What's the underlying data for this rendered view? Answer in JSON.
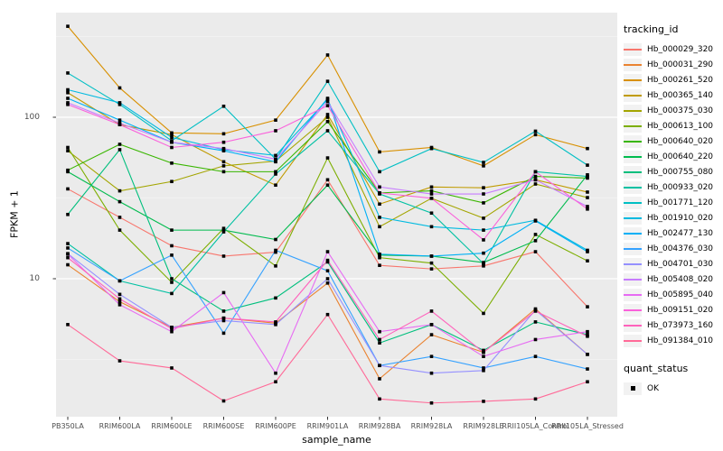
{
  "chart_data": {
    "type": "line",
    "title": "",
    "xlabel": "sample_name",
    "ylabel": "FPKM + 1",
    "y_scale": "log10",
    "y_ticks": [
      {
        "label": "100",
        "value": 100
      },
      {
        "label": "10",
        "value": 10
      }
    ],
    "y_minor_gridlines": [
      3.1623,
      31.623,
      316.23
    ],
    "ylim": [
      1.4,
      450
    ],
    "grid": true,
    "panel_background": "#EBEBEB",
    "gridline_color": "#FFFFFF",
    "point_shape": "small-black-square",
    "legend_position": "right",
    "legend_title": "tracking_id",
    "secondary_legend": {
      "title": "quant_status",
      "items": [
        {
          "label": "OK",
          "marker": "black-square"
        }
      ]
    },
    "categories": [
      "PB350LA",
      "RRIM600LA",
      "RRIM600LE",
      "RRIM600SE",
      "RRIM600PE",
      "RRIM901LA",
      "RRIM928BA",
      "RRIM928LA",
      "RRIM928LE",
      "RRII105LA_Control",
      "RRII105LA_Stressed"
    ],
    "series": [
      {
        "name": "Hb_000029_320",
        "color": "#F8766D",
        "values": [
          36,
          24,
          16,
          13.8,
          14.6,
          41,
          12.1,
          11.5,
          12,
          14.7,
          6.7
        ]
      },
      {
        "name": "Hb_000031_290",
        "color": "#EA8331",
        "values": [
          12.2,
          7.2,
          5,
          5.7,
          5.3,
          9.4,
          2.4,
          4.5,
          3.5,
          6.5,
          3.4
        ]
      },
      {
        "name": "Hb_000261_520",
        "color": "#D89000",
        "values": [
          366,
          152,
          80,
          79,
          96,
          243,
          61,
          65,
          50,
          78,
          64
        ]
      },
      {
        "name": "Hb_000365_140",
        "color": "#C09B00",
        "values": [
          142,
          90,
          78,
          53,
          38,
          104,
          29,
          37,
          36.6,
          41,
          34.4
        ]
      },
      {
        "name": "Hb_000375_030",
        "color": "#A3A500",
        "values": [
          62,
          35,
          40,
          50,
          53.5,
          100,
          21,
          31.5,
          23.7,
          38.6,
          31.8
        ]
      },
      {
        "name": "Hb_000613_100",
        "color": "#7CAE00",
        "values": [
          65,
          20,
          9.5,
          20.5,
          12,
          56,
          13.5,
          12.5,
          6.1,
          18.8,
          12.9
        ]
      },
      {
        "name": "Hb_000640_020",
        "color": "#39B600",
        "values": [
          47,
          68,
          52,
          46,
          46,
          94,
          34,
          35,
          29.5,
          43,
          42
        ]
      },
      {
        "name": "Hb_000640_220",
        "color": "#00BB4E",
        "values": [
          46,
          30,
          20,
          20,
          17.5,
          38,
          14,
          13.8,
          12.6,
          17.2,
          44
        ]
      },
      {
        "name": "Hb_000755_080",
        "color": "#00BF7D",
        "values": [
          25,
          63,
          10,
          6.3,
          7.6,
          12.7,
          4,
          5.2,
          3.6,
          5.4,
          4.5
        ]
      },
      {
        "name": "Hb_000933_020",
        "color": "#00C1A3",
        "values": [
          16.5,
          9.7,
          8.1,
          19.5,
          44.5,
          82.5,
          33.5,
          25.5,
          12.4,
          46,
          43
        ]
      },
      {
        "name": "Hb_001771_120",
        "color": "#00BFC4",
        "values": [
          188,
          120,
          71.5,
          117,
          55,
          167,
          46,
          64,
          52.5,
          82,
          50.5
        ]
      },
      {
        "name": "Hb_001910_020",
        "color": "#00BAE0",
        "values": [
          148,
          123,
          75,
          63,
          58,
          129,
          24,
          21,
          20,
          23,
          15
        ]
      },
      {
        "name": "Hb_002477_130",
        "color": "#00B0F6",
        "values": [
          131,
          96,
          70,
          62,
          53,
          131,
          14.2,
          13.8,
          14.4,
          22.8,
          14.7
        ]
      },
      {
        "name": "Hb_004376_030",
        "color": "#35A2FF",
        "values": [
          15.5,
          9.7,
          14,
          4.6,
          15,
          11.2,
          2.9,
          3.3,
          2.8,
          3.3,
          2.76
        ]
      },
      {
        "name": "Hb_004701_030",
        "color": "#9590FF",
        "values": [
          14.3,
          8,
          5,
          5.5,
          5.2,
          10,
          2.9,
          2.6,
          2.7,
          6.4,
          3.4
        ]
      },
      {
        "name": "Hb_005408_020",
        "color": "#C77CFF",
        "values": [
          123,
          92,
          70,
          64,
          55,
          125,
          37,
          33.5,
          33.5,
          41,
          28
        ]
      },
      {
        "name": "Hb_005895_040",
        "color": "#E76BF3",
        "values": [
          14.2,
          6.9,
          4.7,
          8.2,
          2.6,
          14.7,
          4.7,
          5.2,
          3.3,
          4.2,
          4.7
        ]
      },
      {
        "name": "Hb_009151_020",
        "color": "#FA62DB",
        "values": [
          120,
          90,
          65,
          70,
          82.5,
          118,
          34,
          31.5,
          17.4,
          46,
          27
        ]
      },
      {
        "name": "Hb_073973_160",
        "color": "#FF62BC",
        "values": [
          13.5,
          7.5,
          4.9,
          5.7,
          5.4,
          13,
          4.2,
          6.3,
          3.5,
          6.3,
          4.4
        ]
      },
      {
        "name": "Hb_091384_010",
        "color": "#FF6A98",
        "values": [
          5.2,
          3.1,
          2.8,
          1.75,
          2.3,
          6,
          1.8,
          1.7,
          1.74,
          1.8,
          2.3
        ]
      }
    ]
  }
}
